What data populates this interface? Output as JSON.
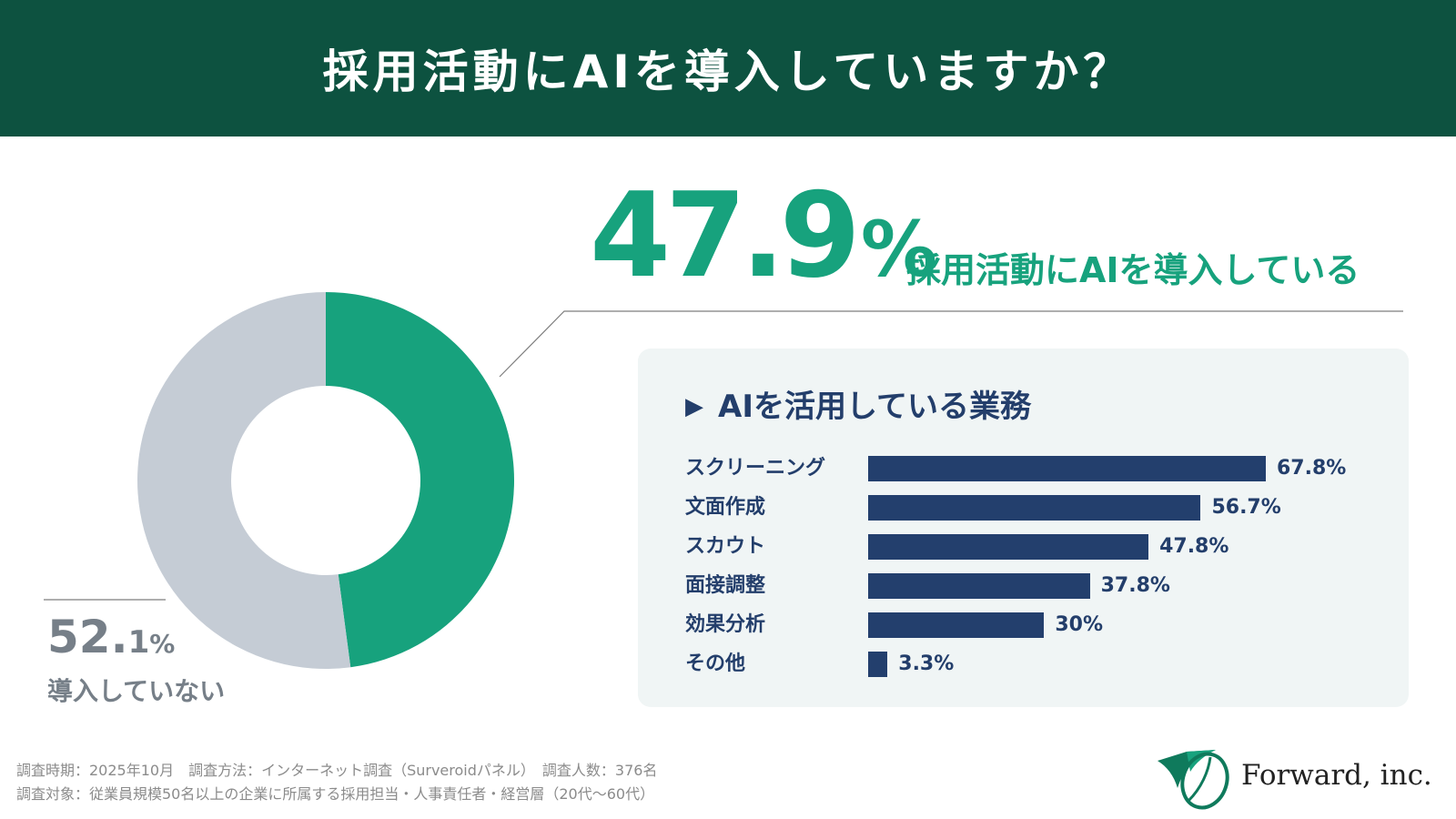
{
  "header": {
    "title": "採用活動にAIを導入していますか？"
  },
  "headline": {
    "value": "47.9",
    "unit": "%",
    "label": "採用活動にAIを導入している"
  },
  "secondary": {
    "value_int": "52.",
    "value_dec": "1",
    "unit": "%",
    "label": "導入していない"
  },
  "panel": {
    "marker": "▶",
    "title": "AIを活用している業務"
  },
  "colors": {
    "header": "#0d5240",
    "accent": "#17a27d",
    "remainder": "#c5ccd5",
    "bar": "#233f6d",
    "muted": "#767f88"
  },
  "chart_data": [
    {
      "type": "pie",
      "labels": [
        "採用活動にAIを導入している",
        "導入していない"
      ],
      "values": [
        47.9,
        52.1
      ],
      "unit": "%"
    },
    {
      "type": "bar",
      "title": "AIを活用している業務",
      "categories": [
        "スクリーニング",
        "文面作成",
        "スカウト",
        "面接調整",
        "効果分析",
        "その他"
      ],
      "values": [
        67.8,
        56.7,
        47.8,
        37.8,
        30,
        3.3
      ],
      "value_labels": [
        "67.8%",
        "56.7%",
        "47.8%",
        "37.8%",
        "30%",
        "3.3%"
      ],
      "unit": "%"
    }
  ],
  "footer": {
    "line1": "調査時期：2025年10月　調査方法：インターネット調査（Surveroidパネル）　調査人数：376名",
    "line2": "調査対象：従業員規模50名以上の企業に所属する採用担当・人事責任者・経営層（20代〜60代）"
  },
  "logo": {
    "text": "Forward, inc."
  }
}
